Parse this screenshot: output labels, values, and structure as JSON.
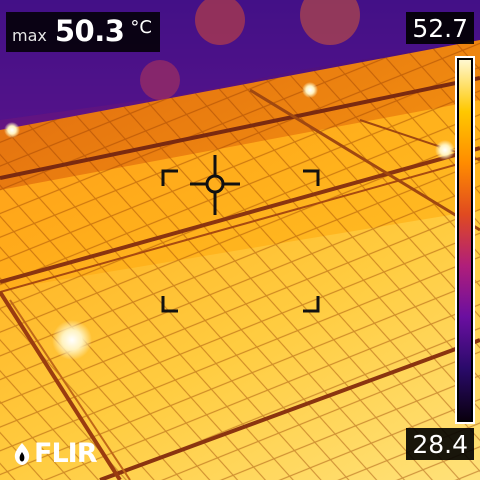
{
  "readout": {
    "label": "max",
    "value": "50.3",
    "unit": "°C"
  },
  "scale": {
    "max": "52.7",
    "min": "28.4"
  },
  "brand": "FLIR",
  "palette": [
    "#0a0010",
    "#2a0a6a",
    "#6a0fa0",
    "#b01e7a",
    "#e04a20",
    "#ff8c00",
    "#ffc800",
    "#fff8d0"
  ]
}
